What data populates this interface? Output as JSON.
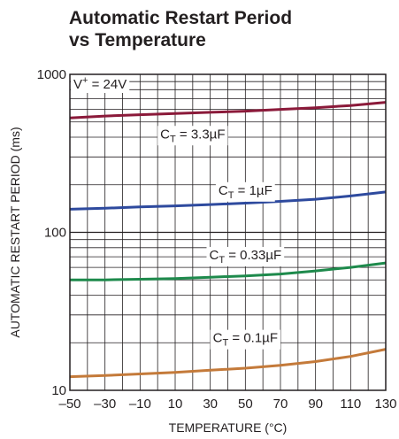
{
  "chart_data": {
    "type": "line",
    "title": [
      "Automatic Restart Period",
      "vs Temperature"
    ],
    "xlabel": "TEMPERATURE (°C)",
    "ylabel": "AUTOMATIC RESTART PERIOD (ms)",
    "xlim": [
      -50,
      130
    ],
    "ylim": [
      10,
      1000
    ],
    "yscale": "log",
    "grid": true,
    "x_ticks": [
      "–50",
      "–30",
      "–10",
      "10",
      "30",
      "50",
      "70",
      "90",
      "110",
      "130"
    ],
    "y_ticks": [
      {
        "value": 10,
        "label": "10"
      },
      {
        "value": 100,
        "label": "100"
      },
      {
        "value": 1000,
        "label": "1000"
      }
    ],
    "annotation": "V+ = 24V",
    "annotation_parts": {
      "base": "V",
      "sup": "+",
      "rest": " = 24V"
    },
    "x": [
      -50,
      -30,
      -10,
      10,
      30,
      50,
      70,
      90,
      110,
      130
    ],
    "series": [
      {
        "name": "CT = 3.3µF",
        "label_base": "C",
        "label_sub": "T",
        "label_rest": " = 3.3µF",
        "label_x": 20,
        "label_y": 420,
        "color": "#8b1a3a",
        "values": [
          530,
          545,
          555,
          565,
          575,
          585,
          600,
          615,
          635,
          665
        ]
      },
      {
        "name": "CT = 1µF",
        "label_base": "C",
        "label_sub": "T",
        "label_rest": " = 1µF",
        "label_x": 50,
        "label_y": 185,
        "color": "#2e4a9e",
        "values": [
          140,
          142,
          145,
          147,
          150,
          153,
          157,
          162,
          170,
          180
        ]
      },
      {
        "name": "CT = 0.33µF",
        "label_base": "C",
        "label_sub": "T",
        "label_rest": " = 0.33µF",
        "label_x": 50,
        "label_y": 72,
        "color": "#1e8a4c",
        "values": [
          50,
          50,
          50.5,
          51,
          52,
          53,
          54.5,
          57,
          60,
          64
        ]
      },
      {
        "name": "CT = 0.1µF",
        "label_base": "C",
        "label_sub": "T",
        "label_rest": " = 0.1µF",
        "label_x": 50,
        "label_y": 21.5,
        "color": "#c47a3a",
        "values": [
          12.2,
          12.4,
          12.7,
          13.0,
          13.4,
          13.8,
          14.4,
          15.2,
          16.4,
          18.2
        ]
      }
    ]
  }
}
